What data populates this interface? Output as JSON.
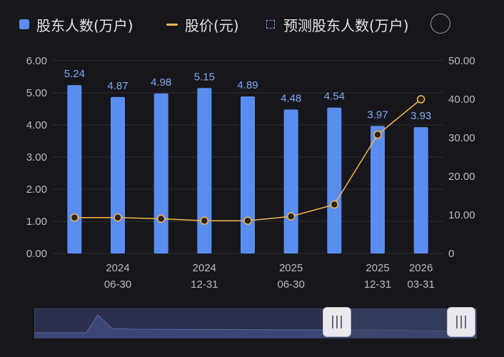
{
  "legend": {
    "holders": "股东人数(万户)",
    "price": "股价(元)",
    "forecast": "预测股东人数(万户)"
  },
  "colors": {
    "bar": "#5a8df0",
    "line": "#f5b451",
    "label": "#7fa8f5",
    "background": "#17171b",
    "grid": "#2c2c33"
  },
  "chart_data": {
    "type": "bar",
    "x": [
      "",
      "2024\n06-30",
      "",
      "2024\n12-31",
      "",
      "2025\n06-30",
      "",
      "2025\n12-31",
      "2026\n03-31"
    ],
    "series": [
      {
        "name": "股东人数(万户)",
        "axis": "left",
        "values": [
          5.24,
          4.87,
          4.98,
          5.15,
          4.89,
          4.48,
          4.54,
          3.97,
          3.93
        ],
        "labels": [
          "5.24",
          "4.87",
          "4.98",
          "5.15",
          "4.89",
          "4.48",
          "4.54",
          "3.97",
          "3.93"
        ]
      },
      {
        "name": "股价(元)",
        "type": "line",
        "axis": "right",
        "values": [
          9.3,
          9.3,
          9.0,
          8.5,
          8.5,
          9.6,
          12.7,
          30.8,
          40.0
        ]
      }
    ],
    "y_left": {
      "ticks": [
        "0.00",
        "1.00",
        "2.00",
        "3.00",
        "4.00",
        "5.00",
        "6.00"
      ],
      "range": [
        0,
        6
      ]
    },
    "y_right": {
      "ticks": [
        "0",
        "10.00",
        "20.00",
        "30.00",
        "40.00",
        "50.00"
      ],
      "range": [
        0,
        50
      ]
    },
    "grid": true,
    "legend_position": "top"
  }
}
